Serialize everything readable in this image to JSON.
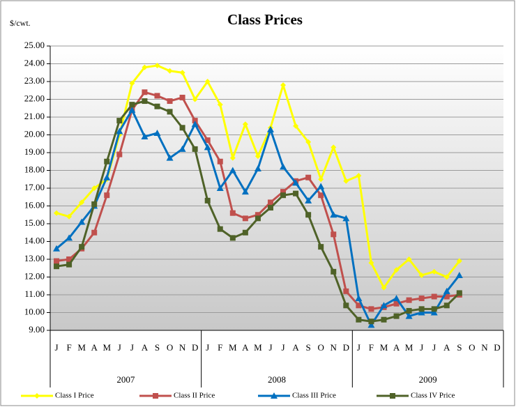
{
  "chart_data": {
    "type": "line",
    "title": "Class Prices",
    "y_label": "$/cwt.",
    "categories": [
      "J",
      "F",
      "M",
      "A",
      "M",
      "J",
      "J",
      "A",
      "S",
      "O",
      "N",
      "D",
      "J",
      "F",
      "M",
      "A",
      "M",
      "J",
      "J",
      "A",
      "S",
      "O",
      "N",
      "D",
      "J",
      "F",
      "M",
      "A",
      "M",
      "J",
      "J",
      "A",
      "S",
      "O",
      "N",
      "D"
    ],
    "years": [
      "2007",
      "2008",
      "2009"
    ],
    "ylim": [
      9,
      25
    ],
    "yticks": [
      {
        "value": 9,
        "label": "9.00"
      },
      {
        "value": 10,
        "label": "10.00"
      },
      {
        "value": 11,
        "label": "11.00"
      },
      {
        "value": 12,
        "label": "12.00"
      },
      {
        "value": 13,
        "label": "13.00"
      },
      {
        "value": 14,
        "label": "14.00"
      },
      {
        "value": 15,
        "label": "15.00"
      },
      {
        "value": 16,
        "label": "16.00"
      },
      {
        "value": 17,
        "label": "17.00"
      },
      {
        "value": 18,
        "label": "18.00"
      },
      {
        "value": 19,
        "label": "19.00"
      },
      {
        "value": 20,
        "label": "20.00"
      },
      {
        "value": 21,
        "label": "21.00"
      },
      {
        "value": 22,
        "label": "22.00"
      },
      {
        "value": 23,
        "label": "23.00"
      },
      {
        "value": 24,
        "label": "24.00"
      },
      {
        "value": 25,
        "label": "25.00"
      }
    ],
    "grid": true,
    "series": [
      {
        "name": "Class I Price",
        "color": "#ffff00",
        "marker": "diamond",
        "values": [
          15.6,
          15.4,
          16.2,
          17.0,
          17.5,
          20.0,
          22.9,
          23.8,
          23.9,
          23.6,
          23.5,
          22.0,
          23.0,
          21.7,
          18.7,
          20.6,
          18.8,
          20.4,
          22.8,
          20.5,
          19.6,
          17.5,
          19.3,
          17.4,
          17.7,
          12.8,
          11.4,
          12.4,
          13.0,
          12.1,
          12.3,
          12.0,
          12.9,
          null,
          null,
          null
        ]
      },
      {
        "name": "Class II Price",
        "color": "#c0504d",
        "marker": "square",
        "values": [
          12.9,
          13.0,
          13.6,
          14.5,
          16.6,
          18.9,
          21.4,
          22.4,
          22.2,
          21.9,
          22.1,
          20.8,
          19.7,
          18.5,
          15.6,
          15.3,
          15.5,
          16.2,
          16.8,
          17.4,
          17.6,
          16.6,
          14.4,
          11.2,
          10.4,
          10.2,
          10.3,
          10.5,
          10.7,
          10.8,
          10.9,
          10.9,
          11.0,
          null,
          null,
          null
        ]
      },
      {
        "name": "Class III Price",
        "color": "#0070c0",
        "marker": "triangle",
        "values": [
          13.6,
          14.2,
          15.1,
          16.0,
          17.6,
          20.2,
          21.4,
          19.9,
          20.1,
          18.7,
          19.2,
          20.6,
          19.3,
          17.0,
          18.0,
          16.8,
          18.1,
          20.3,
          18.2,
          17.3,
          16.3,
          17.1,
          15.5,
          15.3,
          10.8,
          9.3,
          10.4,
          10.8,
          9.8,
          10.0,
          10.0,
          11.2,
          12.1,
          null,
          null,
          null
        ]
      },
      {
        "name": "Class IV Price",
        "color": "#4f6228",
        "marker": "square",
        "values": [
          12.6,
          12.7,
          13.7,
          16.1,
          18.5,
          20.8,
          21.7,
          21.9,
          21.6,
          21.3,
          20.4,
          19.2,
          16.3,
          14.7,
          14.2,
          14.5,
          15.3,
          15.9,
          16.6,
          16.7,
          15.5,
          13.7,
          12.3,
          10.4,
          9.6,
          9.5,
          9.6,
          9.8,
          10.1,
          10.2,
          10.2,
          10.4,
          11.1,
          null,
          null,
          null
        ]
      }
    ]
  }
}
